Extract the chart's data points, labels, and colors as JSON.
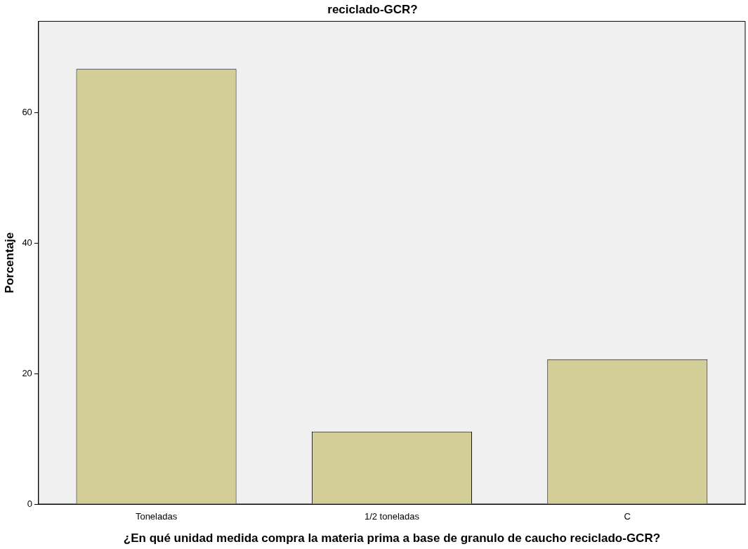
{
  "chart_data": {
    "type": "bar",
    "title": "reciclado-GCR?",
    "xlabel": "¿En qué unidad medida compra la materia prima a base de granulo de caucho reciclado-GCR?",
    "ylabel": "Porcentaje",
    "categories": [
      "Toneladas",
      "1/2 toneladas",
      "C"
    ],
    "values": [
      66.7,
      11.1,
      22.2
    ],
    "color": "#d3ce97",
    "ylim": [
      0,
      74
    ],
    "yticks": [
      0,
      20,
      40,
      60
    ],
    "grid": false,
    "legend": false
  }
}
